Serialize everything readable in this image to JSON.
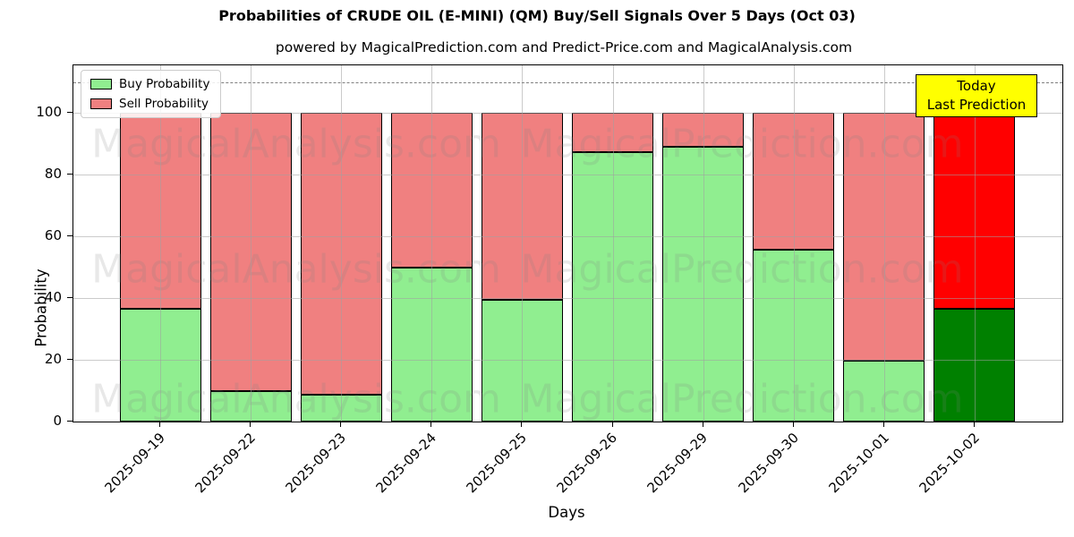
{
  "chart_data": {
    "type": "bar",
    "stacked": true,
    "title": "Probabilities of CRUDE OIL (E-MINI) (QM) Buy/Sell Signals Over 5 Days (Oct 03)",
    "subtitle": "powered by MagicalPrediction.com and Predict-Price.com and MagicalAnalysis.com",
    "xlabel": "Days",
    "ylabel": "Probability",
    "categories": [
      "2025-09-19",
      "2025-09-22",
      "2025-09-23",
      "2025-09-24",
      "2025-09-25",
      "2025-09-26",
      "2025-09-29",
      "2025-09-30",
      "2025-10-01",
      "2025-10-02"
    ],
    "series": [
      {
        "name": "Buy Probability",
        "color": "#90ee90",
        "values": [
          36.5,
          10.0,
          8.7,
          50.0,
          39.5,
          87.3,
          88.9,
          55.7,
          19.8,
          36.6
        ]
      },
      {
        "name": "Sell Probability",
        "color": "#f08080",
        "values": [
          63.5,
          90.0,
          91.3,
          50.0,
          60.5,
          12.7,
          11.1,
          44.3,
          80.2,
          63.4
        ]
      }
    ],
    "today_bar": {
      "category": "2025-10-02",
      "buy_color": "#008000",
      "sell_color": "#ff0000"
    },
    "yticks": [
      0,
      20,
      40,
      60,
      80,
      100
    ],
    "ylim": [
      0,
      115
    ],
    "grid": true,
    "dashed_line_y": 110,
    "legend_position": "upper left",
    "bar_edge_color": "#000000"
  },
  "annotation": {
    "line1": "Today",
    "line2": "Last Prediction",
    "bg_color": "#ffff00"
  },
  "watermarks": {
    "left": "MagicalAnalysis.com",
    "right": "MagicalPrediction.com"
  }
}
